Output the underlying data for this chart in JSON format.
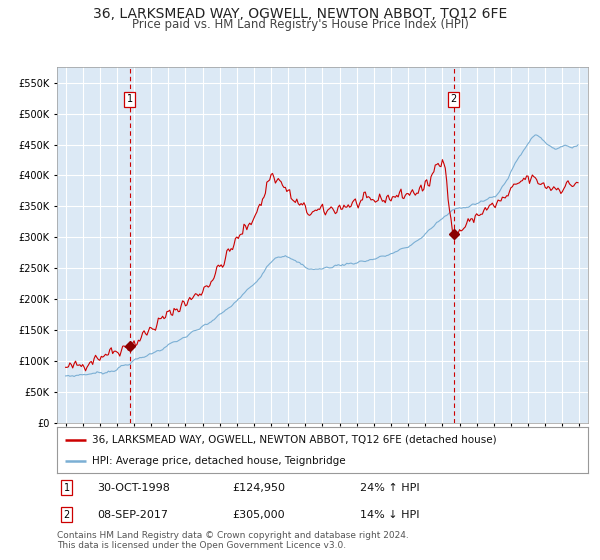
{
  "title": "36, LARKSMEAD WAY, OGWELL, NEWTON ABBOT, TQ12 6FE",
  "subtitle": "Price paid vs. HM Land Registry's House Price Index (HPI)",
  "legend_line1": "36, LARKSMEAD WAY, OGWELL, NEWTON ABBOT, TQ12 6FE (detached house)",
  "legend_line2": "HPI: Average price, detached house, Teignbridge",
  "purchase1_date": "30-OCT-1998",
  "purchase1_price": 124950,
  "purchase1_label": "24% ↑ HPI",
  "purchase2_date": "08-SEP-2017",
  "purchase2_price": 305000,
  "purchase2_label": "14% ↓ HPI",
  "hpi_line_color": "#7bafd4",
  "property_line_color": "#cc0000",
  "marker_color": "#8b0000",
  "vline_color": "#cc0000",
  "background_color": "#dce9f5",
  "grid_color": "#ffffff",
  "ylim": [
    0,
    575000
  ],
  "yticks": [
    0,
    50000,
    100000,
    150000,
    200000,
    250000,
    300000,
    350000,
    400000,
    450000,
    500000,
    550000
  ],
  "footer_text": "Contains HM Land Registry data © Crown copyright and database right 2024.\nThis data is licensed under the Open Government Licence v3.0.",
  "title_fontsize": 10,
  "subtitle_fontsize": 8.5,
  "axis_fontsize": 7,
  "legend_fontsize": 8
}
